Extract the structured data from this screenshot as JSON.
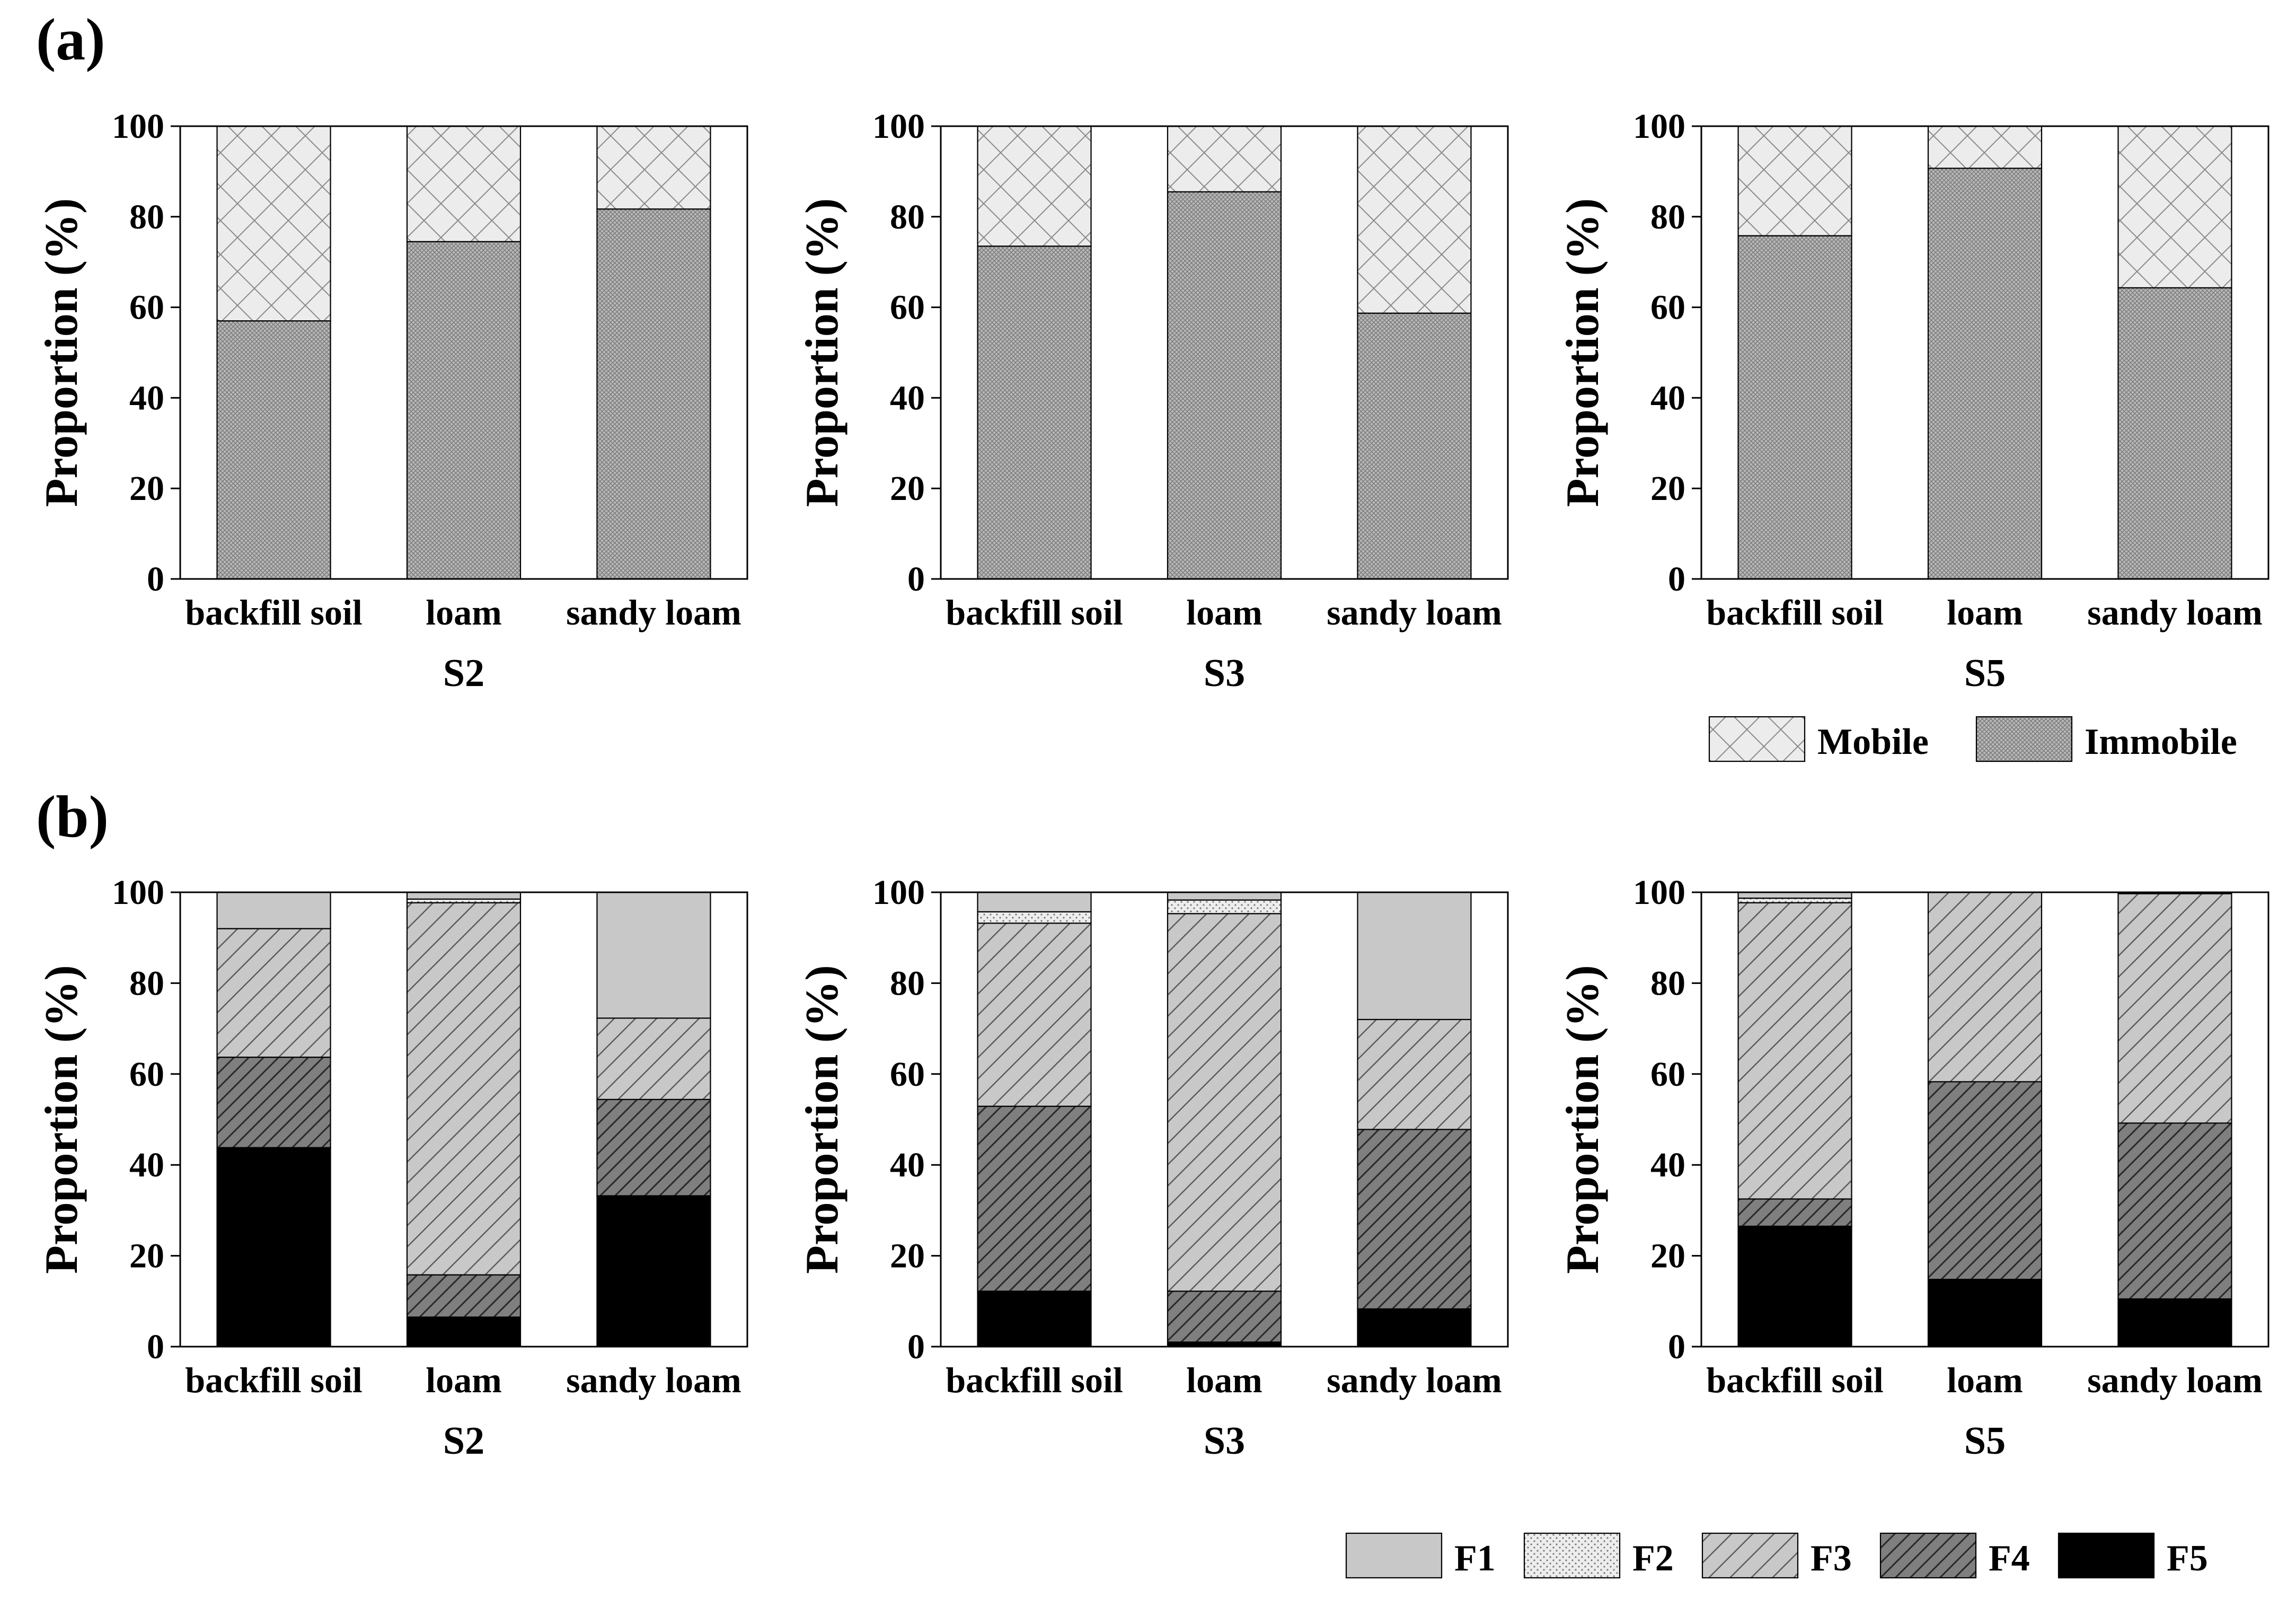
{
  "figure": {
    "panel_a_label": "(a)",
    "panel_b_label": "(b)"
  },
  "colors": {
    "mobile_fill": "#ececec",
    "immobile_fill": "#b9b9b9",
    "F1": "#c8c8c8",
    "F2": "#ededed",
    "F3": "#c8c8c8",
    "F4": "#7f7f7f",
    "F5": "#000000"
  },
  "chart_data": [
    {
      "type": "bar",
      "stacked": true,
      "panel": "a",
      "title": "",
      "xlabel": "S2",
      "ylabel": "Proportion (%)",
      "ylim": [
        0,
        100
      ],
      "yticks": [
        0,
        20,
        40,
        60,
        80,
        100
      ],
      "categories": [
        "backfill soil",
        "loam",
        "sandy loam"
      ],
      "series": [
        {
          "name": "Immobile",
          "values": [
            57,
            74.5,
            81.7
          ]
        },
        {
          "name": "Mobile",
          "values": [
            43,
            25.5,
            18.3
          ]
        }
      ]
    },
    {
      "type": "bar",
      "stacked": true,
      "panel": "a",
      "title": "",
      "xlabel": "S3",
      "ylabel": "Proportion (%)",
      "ylim": [
        0,
        100
      ],
      "yticks": [
        0,
        20,
        40,
        60,
        80,
        100
      ],
      "categories": [
        "backfill soil",
        "loam",
        "sandy loam"
      ],
      "series": [
        {
          "name": "Immobile",
          "values": [
            73.5,
            85.5,
            58.7
          ]
        },
        {
          "name": "Mobile",
          "values": [
            26.5,
            14.5,
            41.3
          ]
        }
      ]
    },
    {
      "type": "bar",
      "stacked": true,
      "panel": "a",
      "title": "",
      "xlabel": "S5",
      "ylabel": "Proportion (%)",
      "ylim": [
        0,
        100
      ],
      "yticks": [
        0,
        20,
        40,
        60,
        80,
        100
      ],
      "categories": [
        "backfill soil",
        "loam",
        "sandy loam"
      ],
      "series": [
        {
          "name": "Immobile",
          "values": [
            75.8,
            90.7,
            64.3
          ]
        },
        {
          "name": "Mobile",
          "values": [
            24.2,
            9.3,
            35.7
          ]
        }
      ]
    },
    {
      "type": "bar",
      "stacked": true,
      "panel": "b",
      "title": "",
      "xlabel": "S2",
      "ylabel": "Proportion (%)",
      "ylim": [
        0,
        100
      ],
      "yticks": [
        0,
        20,
        40,
        60,
        80,
        100
      ],
      "categories": [
        "backfill soil",
        "loam",
        "sandy loam"
      ],
      "series": [
        {
          "name": "F5",
          "values": [
            43.8,
            6.5,
            33.2
          ]
        },
        {
          "name": "F4",
          "values": [
            19.9,
            9.3,
            21.2
          ]
        },
        {
          "name": "F3",
          "values": [
            28.3,
            81.9,
            17.9
          ]
        },
        {
          "name": "F2",
          "values": [
            0,
            0.8,
            0
          ]
        },
        {
          "name": "F1",
          "values": [
            8,
            1.5,
            27.7
          ]
        }
      ]
    },
    {
      "type": "bar",
      "stacked": true,
      "panel": "b",
      "title": "",
      "xlabel": "S3",
      "ylabel": "Proportion (%)",
      "ylim": [
        0,
        100
      ],
      "yticks": [
        0,
        20,
        40,
        60,
        80,
        100
      ],
      "categories": [
        "backfill soil",
        "loam",
        "sandy loam"
      ],
      "series": [
        {
          "name": "F5",
          "values": [
            12.2,
            1,
            8.3
          ]
        },
        {
          "name": "F4",
          "values": [
            40.7,
            11.2,
            39.5
          ]
        },
        {
          "name": "F3",
          "values": [
            40.3,
            83.1,
            24.2
          ]
        },
        {
          "name": "F2",
          "values": [
            2.5,
            3,
            0
          ]
        },
        {
          "name": "F1",
          "values": [
            4.3,
            1.7,
            28
          ]
        }
      ]
    },
    {
      "type": "bar",
      "stacked": true,
      "panel": "b",
      "title": "",
      "xlabel": "S5",
      "ylabel": "Proportion (%)",
      "ylim": [
        0,
        100
      ],
      "yticks": [
        0,
        20,
        40,
        60,
        80,
        100
      ],
      "categories": [
        "backfill soil",
        "loam",
        "sandy loam"
      ],
      "series": [
        {
          "name": "F5",
          "values": [
            26.5,
            14.8,
            10.5
          ]
        },
        {
          "name": "F4",
          "values": [
            6,
            43.5,
            38.7
          ]
        },
        {
          "name": "F3",
          "values": [
            65.2,
            41.7,
            50.5
          ]
        },
        {
          "name": "F2",
          "values": [
            1,
            0,
            0
          ]
        },
        {
          "name": "F1",
          "values": [
            1.3,
            0,
            0.3
          ]
        }
      ]
    }
  ],
  "legend_a": [
    {
      "key": "Mobile",
      "label": "Mobile"
    },
    {
      "key": "Immobile",
      "label": "Immobile"
    }
  ],
  "legend_b": [
    {
      "key": "F1",
      "label": "F1"
    },
    {
      "key": "F2",
      "label": "F2"
    },
    {
      "key": "F3",
      "label": "F3"
    },
    {
      "key": "F4",
      "label": "F4"
    },
    {
      "key": "F5",
      "label": "F5"
    }
  ]
}
